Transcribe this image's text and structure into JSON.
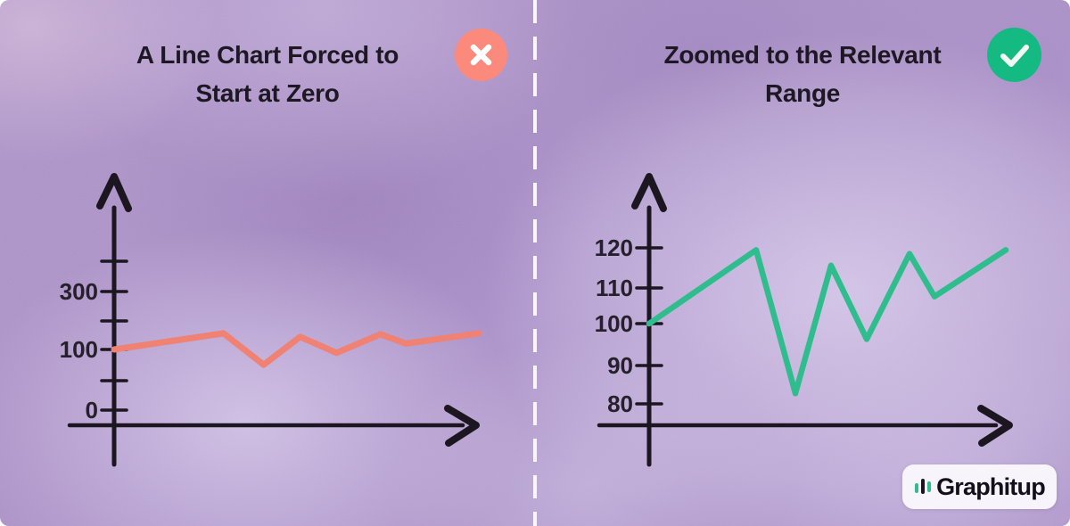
{
  "panels": [
    {
      "title_line1": "A Line Chart Forced to",
      "title_line2": "Start at Zero",
      "badge": "cross-in-circle",
      "badge_color": "#fb8a7c"
    },
    {
      "title_line1": "Zoomed to the Relevant",
      "title_line2": "Range",
      "badge": "check-in-circle",
      "badge_color": "#14ba81"
    }
  ],
  "chart_data": [
    {
      "type": "line",
      "title": "A Line Chart Forced to Start at Zero",
      "series": [
        {
          "name": "value",
          "values": [
            100,
            119,
            82,
            115,
            96,
            118,
            107,
            119
          ]
        }
      ],
      "x": [
        1,
        2,
        3,
        4,
        5,
        6,
        7,
        8
      ],
      "xlabel": "",
      "ylabel": "",
      "y_tick_labels": [
        "300",
        "100",
        "0"
      ],
      "ylim": [
        0,
        400
      ],
      "grid": false,
      "legend": "none",
      "line_color": "#ef8273",
      "verdict": "bad"
    },
    {
      "type": "line",
      "title": "Zoomed to the Relevant Range",
      "series": [
        {
          "name": "value",
          "values": [
            100,
            119,
            82,
            115,
            96,
            118,
            107,
            119
          ]
        }
      ],
      "x": [
        1,
        2,
        3,
        4,
        5,
        6,
        7,
        8
      ],
      "xlabel": "",
      "ylabel": "",
      "y_tick_labels": [
        "120",
        "110",
        "100",
        "90",
        "80"
      ],
      "ylim": [
        75,
        125
      ],
      "grid": false,
      "legend": "none",
      "line_color": "#2fbd8d",
      "verdict": "good"
    }
  ],
  "logo": {
    "text": "Graphitup"
  },
  "colors": {
    "background_base": "#ad94c8",
    "axis": "#1b1620",
    "divider": "#f8f5fb",
    "bad_line": "#ef8273",
    "bad_badge": "#fb8a7c",
    "good_line": "#2fbd8d",
    "good_badge": "#14ba81",
    "title_text": "#1d1823"
  }
}
